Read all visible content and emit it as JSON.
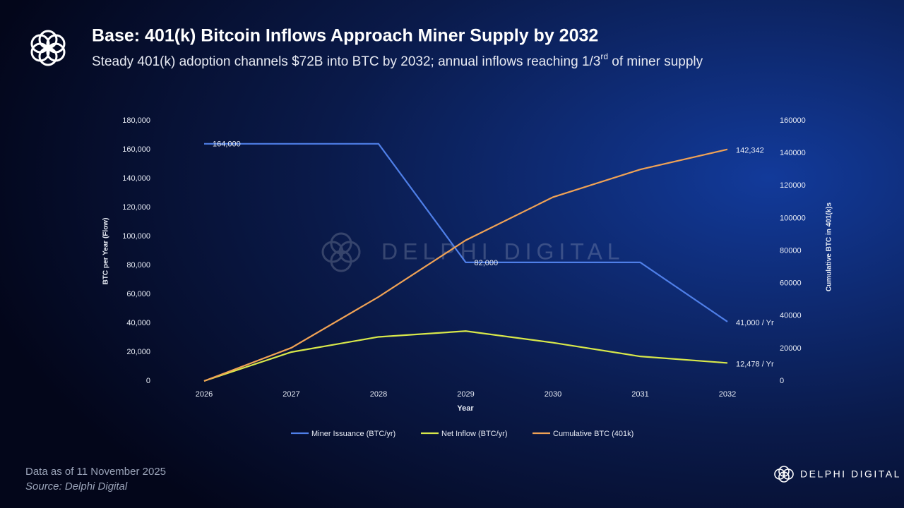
{
  "header": {
    "title": "Base: 401(k) Bitcoin Inflows Approach Miner Supply by 2032",
    "subtitle": "Steady 401(k) adoption channels $72B into BTC by 2032; annual inflows reaching 1/3",
    "subtitle_sup": "rd",
    "subtitle_end": " of miner supply"
  },
  "chart_data": {
    "type": "line",
    "categories": [
      "2026",
      "2027",
      "2028",
      "2029",
      "2030",
      "2031",
      "2032"
    ],
    "x_label": "Year",
    "y_label": "BTC per Year (Flow)",
    "y2_label": "Cumulative BTC in 401(k)s",
    "watermark": "DELPHI DIGITAL",
    "ylim": [
      0,
      180000
    ],
    "yticks": [
      0,
      {
        "value": 20000,
        "label": "20,000"
      },
      {
        "value": 40000,
        "label": "40,000"
      },
      {
        "value": 60000,
        "label": "60,000"
      },
      {
        "value": 80000,
        "label": "80,000"
      },
      {
        "value": 100000,
        "label": "100,000"
      },
      {
        "value": 120000,
        "label": "120,000"
      },
      {
        "value": 140000,
        "label": "140,000"
      },
      {
        "value": 160000,
        "label": "160,000"
      },
      {
        "value": 180000,
        "label": "180,000"
      }
    ],
    "y2lim": [
      0,
      160000
    ],
    "y2ticks": [
      0,
      20000,
      40000,
      60000,
      80000,
      100000,
      120000,
      140000,
      160000
    ],
    "series": [
      {
        "name": "Miner Issuance (BTC/yr)",
        "color": "#4f7fe8",
        "values": [
          164000,
          164000,
          164000,
          82000,
          82000,
          82000,
          41000
        ],
        "value_labels": [
          "164,000",
          null,
          null,
          "82,000",
          null,
          null,
          "41,000 / Yr"
        ]
      },
      {
        "name": "Net Inflow (BTC/yr)",
        "color": "#d8e84a",
        "values": [
          0,
          20000,
          30500,
          34500,
          26500,
          17000,
          12478
        ],
        "value_labels": [
          null,
          null,
          null,
          null,
          null,
          null,
          "12,478 / Yr"
        ]
      },
      {
        "name": "Cumulative BTC (401k)",
        "color": "#f0a255",
        "axis": "y2",
        "values": [
          0,
          20400,
          51700,
          86500,
          113000,
          130000,
          142342
        ],
        "value_labels": [
          null,
          null,
          null,
          null,
          null,
          null,
          "142,342"
        ]
      }
    ]
  },
  "footer": {
    "date": "Data as of 11 November 2025",
    "source": "Source: Delphi Digital",
    "brand": "DELPHI DIGITAL"
  }
}
